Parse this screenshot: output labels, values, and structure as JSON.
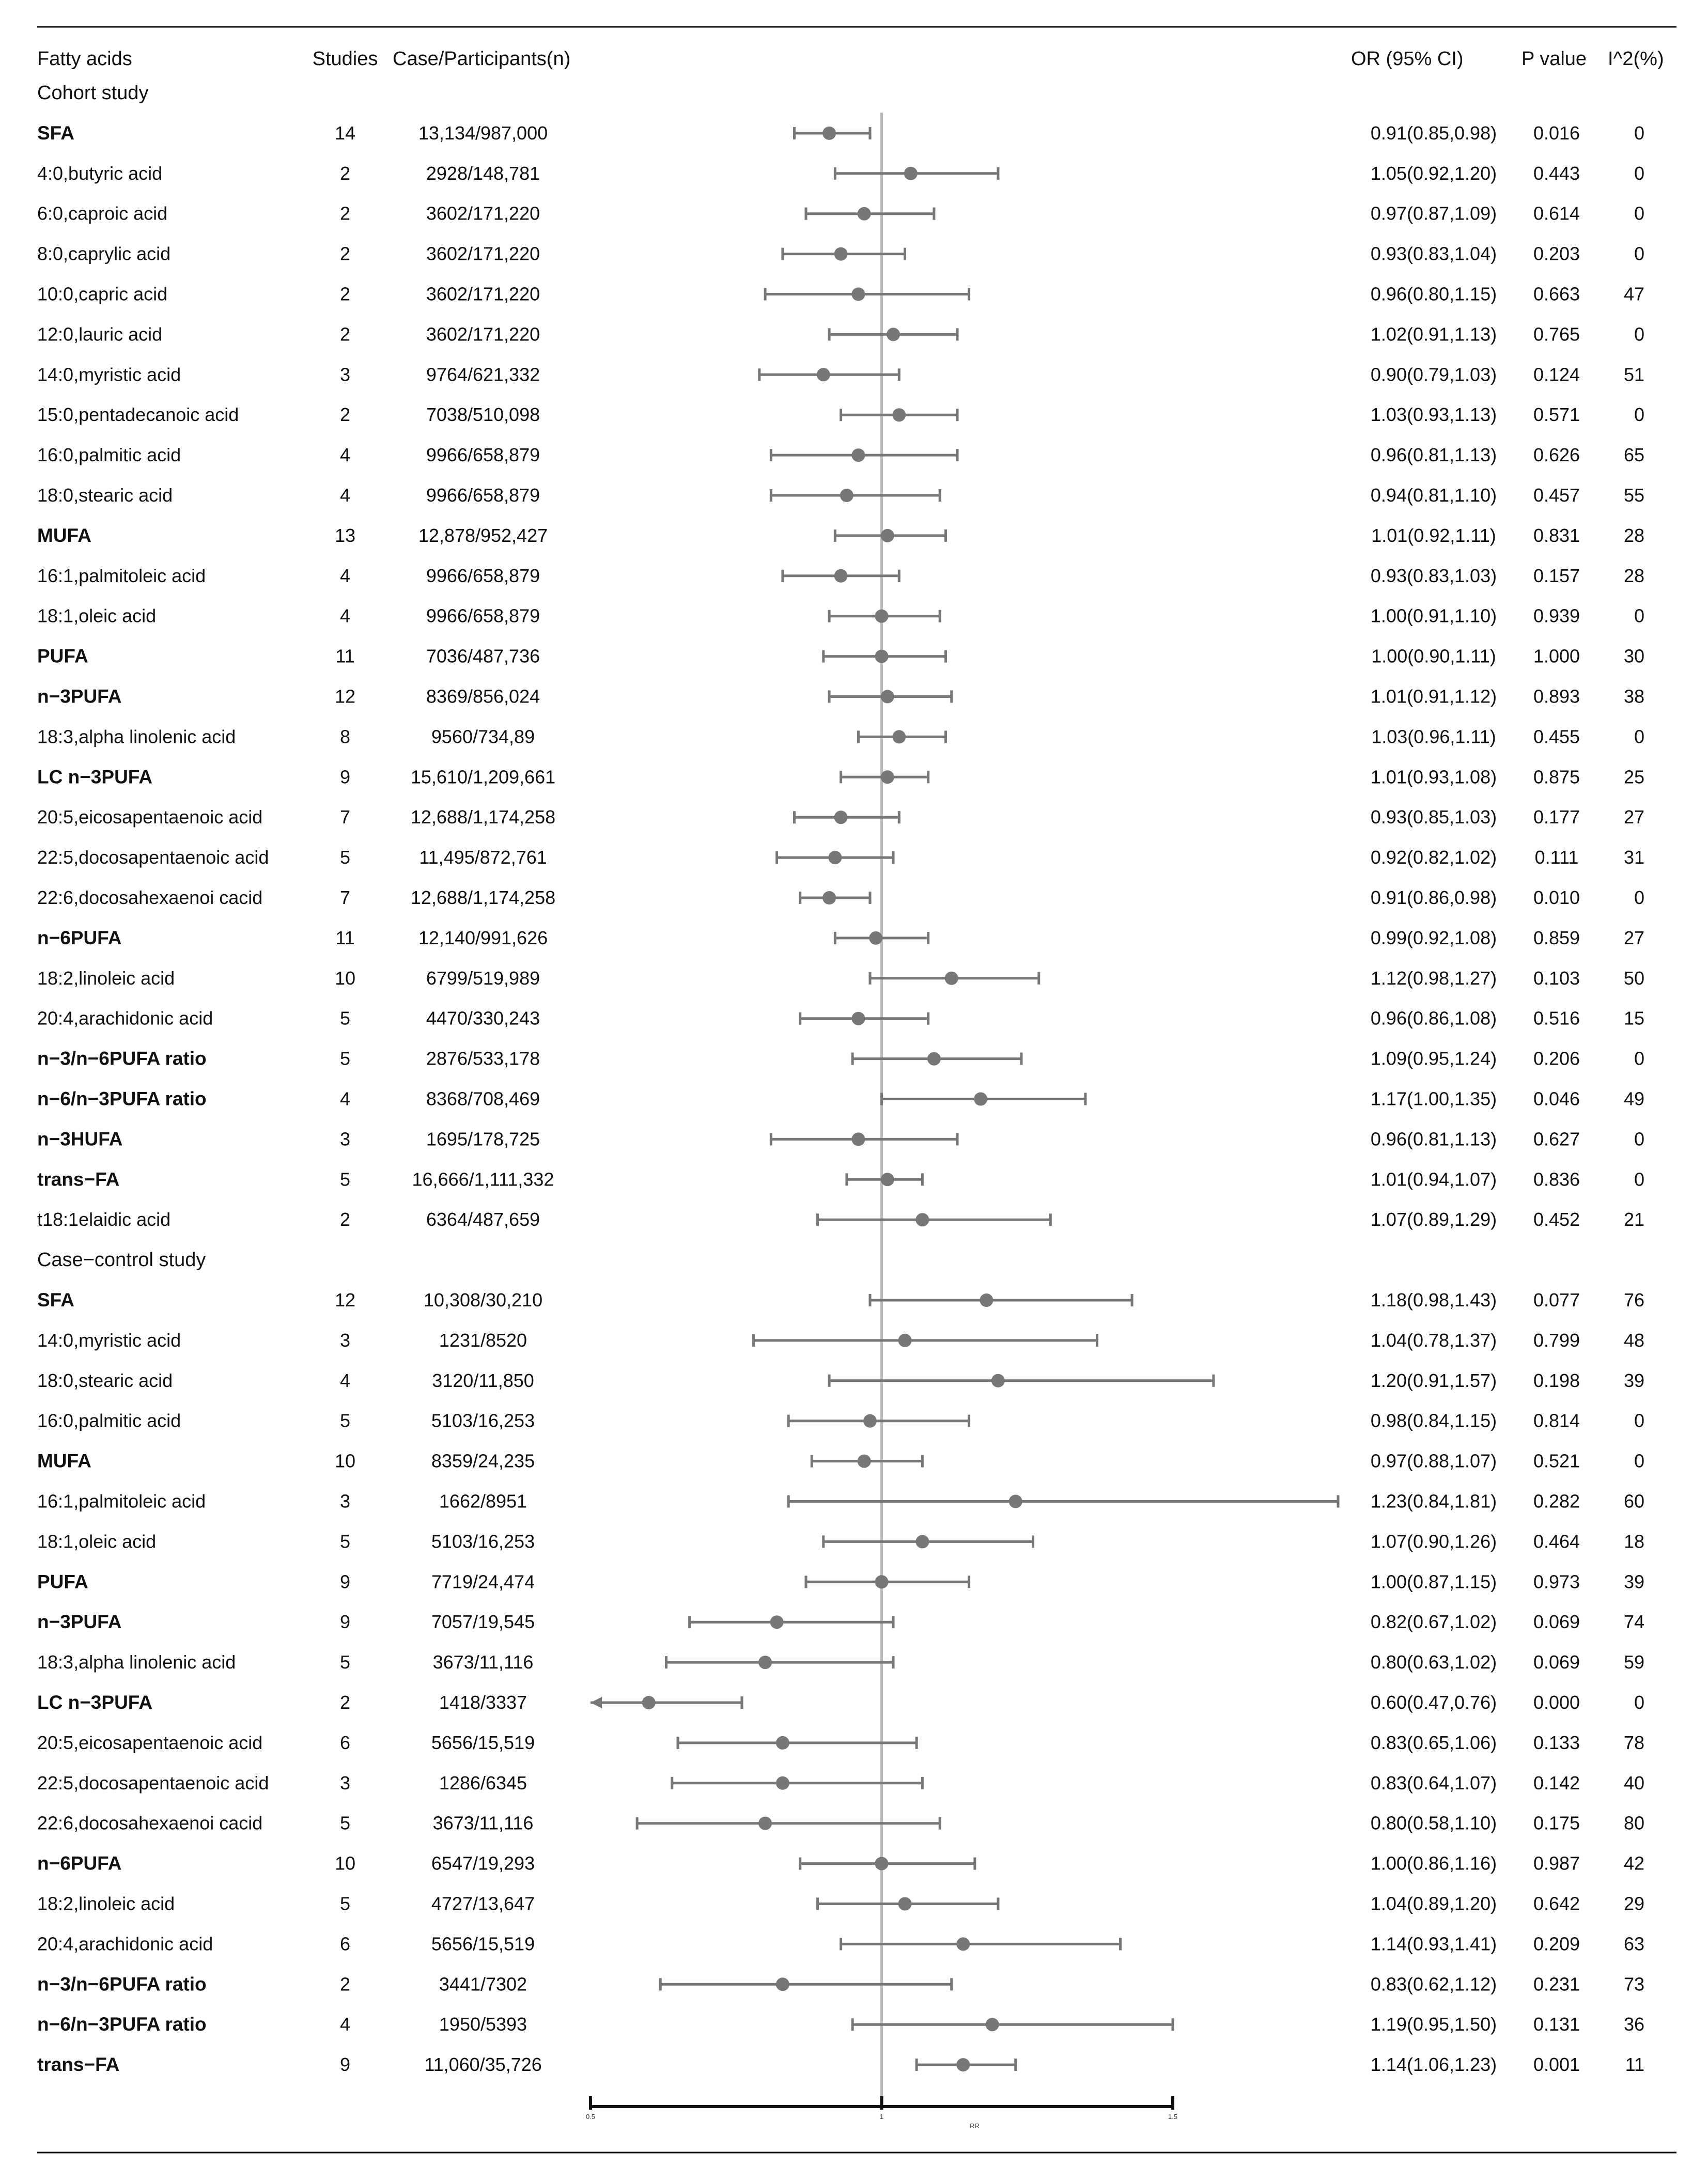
{
  "headers": {
    "name": "Fatty acids",
    "studies": "Studies",
    "cases": "Case/Participants(n)",
    "or": "OR  (95%  CI)",
    "p": "P value",
    "i2": "I^2(%)"
  },
  "sections": [
    {
      "title": "Cohort study",
      "rows": [
        {
          "name": "SFA",
          "bold": true,
          "studies": "14",
          "cases": "13,134/987,000",
          "or_text": "0.91(0.85,0.98)",
          "p": "0.016",
          "i2": "0",
          "or": 0.91,
          "lo": 0.85,
          "hi": 0.98
        },
        {
          "name": "4:0,butyric acid",
          "bold": false,
          "studies": "2",
          "cases": "2928/148,781",
          "or_text": "1.05(0.92,1.20)",
          "p": "0.443",
          "i2": "0",
          "or": 1.05,
          "lo": 0.92,
          "hi": 1.2
        },
        {
          "name": "6:0,caproic acid",
          "bold": false,
          "studies": "2",
          "cases": "3602/171,220",
          "or_text": "0.97(0.87,1.09)",
          "p": "0.614",
          "i2": "0",
          "or": 0.97,
          "lo": 0.87,
          "hi": 1.09
        },
        {
          "name": "8:0,caprylic acid",
          "bold": false,
          "studies": "2",
          "cases": "3602/171,220",
          "or_text": "0.93(0.83,1.04)",
          "p": "0.203",
          "i2": "0",
          "or": 0.93,
          "lo": 0.83,
          "hi": 1.04
        },
        {
          "name": "10:0,capric acid",
          "bold": false,
          "studies": "2",
          "cases": "3602/171,220",
          "or_text": "0.96(0.80,1.15)",
          "p": "0.663",
          "i2": "47",
          "or": 0.96,
          "lo": 0.8,
          "hi": 1.15
        },
        {
          "name": "12:0,lauric acid",
          "bold": false,
          "studies": "2",
          "cases": "3602/171,220",
          "or_text": "1.02(0.91,1.13)",
          "p": "0.765",
          "i2": "0",
          "or": 1.02,
          "lo": 0.91,
          "hi": 1.13
        },
        {
          "name": "14:0,myristic acid",
          "bold": false,
          "studies": "3",
          "cases": "9764/621,332",
          "or_text": "0.90(0.79,1.03)",
          "p": "0.124",
          "i2": "51",
          "or": 0.9,
          "lo": 0.79,
          "hi": 1.03
        },
        {
          "name": "15:0,pentadecanoic acid",
          "bold": false,
          "studies": "2",
          "cases": "7038/510,098",
          "or_text": "1.03(0.93,1.13)",
          "p": "0.571",
          "i2": "0",
          "or": 1.03,
          "lo": 0.93,
          "hi": 1.13
        },
        {
          "name": "16:0,palmitic acid",
          "bold": false,
          "studies": "4",
          "cases": "9966/658,879",
          "or_text": "0.96(0.81,1.13)",
          "p": "0.626",
          "i2": "65",
          "or": 0.96,
          "lo": 0.81,
          "hi": 1.13
        },
        {
          "name": "18:0,stearic acid",
          "bold": false,
          "studies": "4",
          "cases": "9966/658,879",
          "or_text": "0.94(0.81,1.10)",
          "p": "0.457",
          "i2": "55",
          "or": 0.94,
          "lo": 0.81,
          "hi": 1.1
        },
        {
          "name": "MUFA",
          "bold": true,
          "studies": "13",
          "cases": "12,878/952,427",
          "or_text": "1.01(0.92,1.11)",
          "p": "0.831",
          "i2": "28",
          "or": 1.01,
          "lo": 0.92,
          "hi": 1.11
        },
        {
          "name": "16:1,palmitoleic acid",
          "bold": false,
          "studies": "4",
          "cases": "9966/658,879",
          "or_text": "0.93(0.83,1.03)",
          "p": "0.157",
          "i2": "28",
          "or": 0.93,
          "lo": 0.83,
          "hi": 1.03
        },
        {
          "name": "18:1,oleic acid",
          "bold": false,
          "studies": "4",
          "cases": "9966/658,879",
          "or_text": "1.00(0.91,1.10)",
          "p": "0.939",
          "i2": "0",
          "or": 1.0,
          "lo": 0.91,
          "hi": 1.1
        },
        {
          "name": "PUFA",
          "bold": true,
          "studies": "11",
          "cases": "7036/487,736",
          "or_text": "1.00(0.90,1.11)",
          "p": "1.000",
          "i2": "30",
          "or": 1.0,
          "lo": 0.9,
          "hi": 1.11
        },
        {
          "name": "n−3PUFA",
          "bold": true,
          "studies": "12",
          "cases": "8369/856,024",
          "or_text": "1.01(0.91,1.12)",
          "p": "0.893",
          "i2": "38",
          "or": 1.01,
          "lo": 0.91,
          "hi": 1.12
        },
        {
          "name": "18:3,alpha linolenic acid",
          "bold": false,
          "studies": "8",
          "cases": "9560/734,89",
          "or_text": "1.03(0.96,1.11)",
          "p": "0.455",
          "i2": "0",
          "or": 1.03,
          "lo": 0.96,
          "hi": 1.11
        },
        {
          "name": "LC n−3PUFA",
          "bold": true,
          "studies": "9",
          "cases": "15,610/1,209,661",
          "or_text": "1.01(0.93,1.08)",
          "p": "0.875",
          "i2": "25",
          "or": 1.01,
          "lo": 0.93,
          "hi": 1.08
        },
        {
          "name": "20:5,eicosapentaenoic acid",
          "bold": false,
          "studies": "7",
          "cases": "12,688/1,174,258",
          "or_text": "0.93(0.85,1.03)",
          "p": "0.177",
          "i2": "27",
          "or": 0.93,
          "lo": 0.85,
          "hi": 1.03
        },
        {
          "name": "22:5,docosapentaenoic acid",
          "bold": false,
          "studies": "5",
          "cases": "11,495/872,761",
          "or_text": "0.92(0.82,1.02)",
          "p": "0.111",
          "i2": "31",
          "or": 0.92,
          "lo": 0.82,
          "hi": 1.02
        },
        {
          "name": "22:6,docosahexaenoi cacid",
          "bold": false,
          "studies": "7",
          "cases": "12,688/1,174,258",
          "or_text": "0.91(0.86,0.98)",
          "p": "0.010",
          "i2": "0",
          "or": 0.91,
          "lo": 0.86,
          "hi": 0.98
        },
        {
          "name": "n−6PUFA",
          "bold": true,
          "studies": "11",
          "cases": "12,140/991,626",
          "or_text": "0.99(0.92,1.08)",
          "p": "0.859",
          "i2": "27",
          "or": 0.99,
          "lo": 0.92,
          "hi": 1.08
        },
        {
          "name": "18:2,linoleic acid",
          "bold": false,
          "studies": "10",
          "cases": "6799/519,989",
          "or_text": "1.12(0.98,1.27)",
          "p": "0.103",
          "i2": "50",
          "or": 1.12,
          "lo": 0.98,
          "hi": 1.27
        },
        {
          "name": "20:4,arachidonic acid",
          "bold": false,
          "studies": "5",
          "cases": "4470/330,243",
          "or_text": "0.96(0.86,1.08)",
          "p": "0.516",
          "i2": "15",
          "or": 0.96,
          "lo": 0.86,
          "hi": 1.08
        },
        {
          "name": "n−3/n−6PUFA ratio",
          "bold": true,
          "studies": "5",
          "cases": "2876/533,178",
          "or_text": "1.09(0.95,1.24)",
          "p": "0.206",
          "i2": "0",
          "or": 1.09,
          "lo": 0.95,
          "hi": 1.24
        },
        {
          "name": "n−6/n−3PUFA ratio",
          "bold": true,
          "studies": "4",
          "cases": "8368/708,469",
          "or_text": "1.17(1.00,1.35)",
          "p": "0.046",
          "i2": "49",
          "or": 1.17,
          "lo": 1.0,
          "hi": 1.35
        },
        {
          "name": "n−3HUFA",
          "bold": true,
          "studies": "3",
          "cases": "1695/178,725",
          "or_text": "0.96(0.81,1.13)",
          "p": "0.627",
          "i2": "0",
          "or": 0.96,
          "lo": 0.81,
          "hi": 1.13
        },
        {
          "name": "trans−FA",
          "bold": true,
          "studies": "5",
          "cases": "16,666/1,111,332",
          "or_text": "1.01(0.94,1.07)",
          "p": "0.836",
          "i2": "0",
          "or": 1.01,
          "lo": 0.94,
          "hi": 1.07
        },
        {
          "name": "t18:1elaidic acid",
          "bold": false,
          "studies": "2",
          "cases": "6364/487,659",
          "or_text": "1.07(0.89,1.29)",
          "p": "0.452",
          "i2": "21",
          "or": 1.07,
          "lo": 0.89,
          "hi": 1.29
        }
      ]
    },
    {
      "title": "Case−control study",
      "rows": [
        {
          "name": "SFA",
          "bold": true,
          "studies": "12",
          "cases": "10,308/30,210",
          "or_text": "1.18(0.98,1.43)",
          "p": "0.077",
          "i2": "76",
          "or": 1.18,
          "lo": 0.98,
          "hi": 1.43
        },
        {
          "name": "14:0,myristic acid",
          "bold": false,
          "studies": "3",
          "cases": "1231/8520",
          "or_text": "1.04(0.78,1.37)",
          "p": "0.799",
          "i2": "48",
          "or": 1.04,
          "lo": 0.78,
          "hi": 1.37
        },
        {
          "name": "18:0,stearic acid",
          "bold": false,
          "studies": "4",
          "cases": "3120/11,850",
          "or_text": "1.20(0.91,1.57)",
          "p": "0.198",
          "i2": "39",
          "or": 1.2,
          "lo": 0.91,
          "hi": 1.57
        },
        {
          "name": "16:0,palmitic acid",
          "bold": false,
          "studies": "5",
          "cases": "5103/16,253",
          "or_text": "0.98(0.84,1.15)",
          "p": "0.814",
          "i2": "0",
          "or": 0.98,
          "lo": 0.84,
          "hi": 1.15
        },
        {
          "name": "MUFA",
          "bold": true,
          "studies": "10",
          "cases": "8359/24,235",
          "or_text": "0.97(0.88,1.07)",
          "p": "0.521",
          "i2": "0",
          "or": 0.97,
          "lo": 0.88,
          "hi": 1.07
        },
        {
          "name": "16:1,palmitoleic acid",
          "bold": false,
          "studies": "3",
          "cases": "1662/8951",
          "or_text": "1.23(0.84,1.81)",
          "p": "0.282",
          "i2": "60",
          "or": 1.23,
          "lo": 0.84,
          "hi": 1.81
        },
        {
          "name": "18:1,oleic acid",
          "bold": false,
          "studies": "5",
          "cases": "5103/16,253",
          "or_text": "1.07(0.90,1.26)",
          "p": "0.464",
          "i2": "18",
          "or": 1.07,
          "lo": 0.9,
          "hi": 1.26
        },
        {
          "name": "PUFA",
          "bold": true,
          "studies": "9",
          "cases": "7719/24,474",
          "or_text": "1.00(0.87,1.15)",
          "p": "0.973",
          "i2": "39",
          "or": 1.0,
          "lo": 0.87,
          "hi": 1.15
        },
        {
          "name": "n−3PUFA",
          "bold": true,
          "studies": "9",
          "cases": "7057/19,545",
          "or_text": "0.82(0.67,1.02)",
          "p": "0.069",
          "i2": "74",
          "or": 0.82,
          "lo": 0.67,
          "hi": 1.02
        },
        {
          "name": "18:3,alpha linolenic acid",
          "bold": false,
          "studies": "5",
          "cases": "3673/11,116",
          "or_text": "0.80(0.63,1.02)",
          "p": "0.069",
          "i2": "59",
          "or": 0.8,
          "lo": 0.63,
          "hi": 1.02
        },
        {
          "name": "LC n−3PUFA",
          "bold": true,
          "studies": "2",
          "cases": "1418/3337",
          "or_text": "0.60(0.47,0.76)",
          "p": "0.000",
          "i2": "0",
          "or": 0.6,
          "lo": 0.47,
          "hi": 0.76
        },
        {
          "name": "20:5,eicosapentaenoic acid",
          "bold": false,
          "studies": "6",
          "cases": "5656/15,519",
          "or_text": "0.83(0.65,1.06)",
          "p": "0.133",
          "i2": "78",
          "or": 0.83,
          "lo": 0.65,
          "hi": 1.06
        },
        {
          "name": "22:5,docosapentaenoic acid",
          "bold": false,
          "studies": "3",
          "cases": "1286/6345",
          "or_text": "0.83(0.64,1.07)",
          "p": "0.142",
          "i2": "40",
          "or": 0.83,
          "lo": 0.64,
          "hi": 1.07
        },
        {
          "name": "22:6,docosahexaenoi cacid",
          "bold": false,
          "studies": "5",
          "cases": "3673/11,116",
          "or_text": "0.80(0.58,1.10)",
          "p": "0.175",
          "i2": "80",
          "or": 0.8,
          "lo": 0.58,
          "hi": 1.1
        },
        {
          "name": "n−6PUFA",
          "bold": true,
          "studies": "10",
          "cases": "6547/19,293",
          "or_text": "1.00(0.86,1.16)",
          "p": "0.987",
          "i2": "42",
          "or": 1.0,
          "lo": 0.86,
          "hi": 1.16
        },
        {
          "name": "18:2,linoleic acid",
          "bold": false,
          "studies": "5",
          "cases": "4727/13,647",
          "or_text": "1.04(0.89,1.20)",
          "p": "0.642",
          "i2": "29",
          "or": 1.04,
          "lo": 0.89,
          "hi": 1.2
        },
        {
          "name": "20:4,arachidonic acid",
          "bold": false,
          "studies": "6",
          "cases": "5656/15,519",
          "or_text": "1.14(0.93,1.41)",
          "p": "0.209",
          "i2": "63",
          "or": 1.14,
          "lo": 0.93,
          "hi": 1.41
        },
        {
          "name": "n−3/n−6PUFA ratio",
          "bold": true,
          "studies": "2",
          "cases": "3441/7302",
          "or_text": "0.83(0.62,1.12)",
          "p": "0.231",
          "i2": "73",
          "or": 0.83,
          "lo": 0.62,
          "hi": 1.12
        },
        {
          "name": "n−6/n−3PUFA ratio",
          "bold": true,
          "studies": "4",
          "cases": "1950/5393",
          "or_text": "1.19(0.95,1.50)",
          "p": "0.131",
          "i2": "36",
          "or": 1.19,
          "lo": 0.95,
          "hi": 1.5
        },
        {
          "name": "trans−FA",
          "bold": true,
          "studies": "9",
          "cases": "11,060/35,726",
          "or_text": "1.14(1.06,1.23)",
          "p": "0.001",
          "i2": "11",
          "or": 1.14,
          "lo": 1.06,
          "hi": 1.23
        }
      ]
    }
  ],
  "axis": {
    "min": 0.5,
    "max": 1.5,
    "null_value": 1,
    "ticks": [
      "0.5",
      "1",
      "1.5"
    ],
    "label": "RR"
  },
  "chart_data": {
    "type": "forest",
    "title": "",
    "xlabel": "RR",
    "xlim": [
      0.5,
      1.5
    ],
    "reference_line": 1,
    "columns": [
      "Fatty acids",
      "Studies",
      "Case/Participants(n)",
      "OR  (95%  CI)",
      "P value",
      "I^2(%)"
    ],
    "groups": [
      "Cohort study",
      "Case−control study"
    ],
    "note": "Per-row OR, lower and upper CI values stored in sections[].rows[]; the case-control LC n−3PUFA interval extends below the axis minimum and is drawn with an arrow."
  },
  "colors": {
    "marker": "#777777",
    "ci_line": "#777777",
    "reference_line": "#bbbbbb",
    "rule": "#111111",
    "text": "#111111"
  }
}
